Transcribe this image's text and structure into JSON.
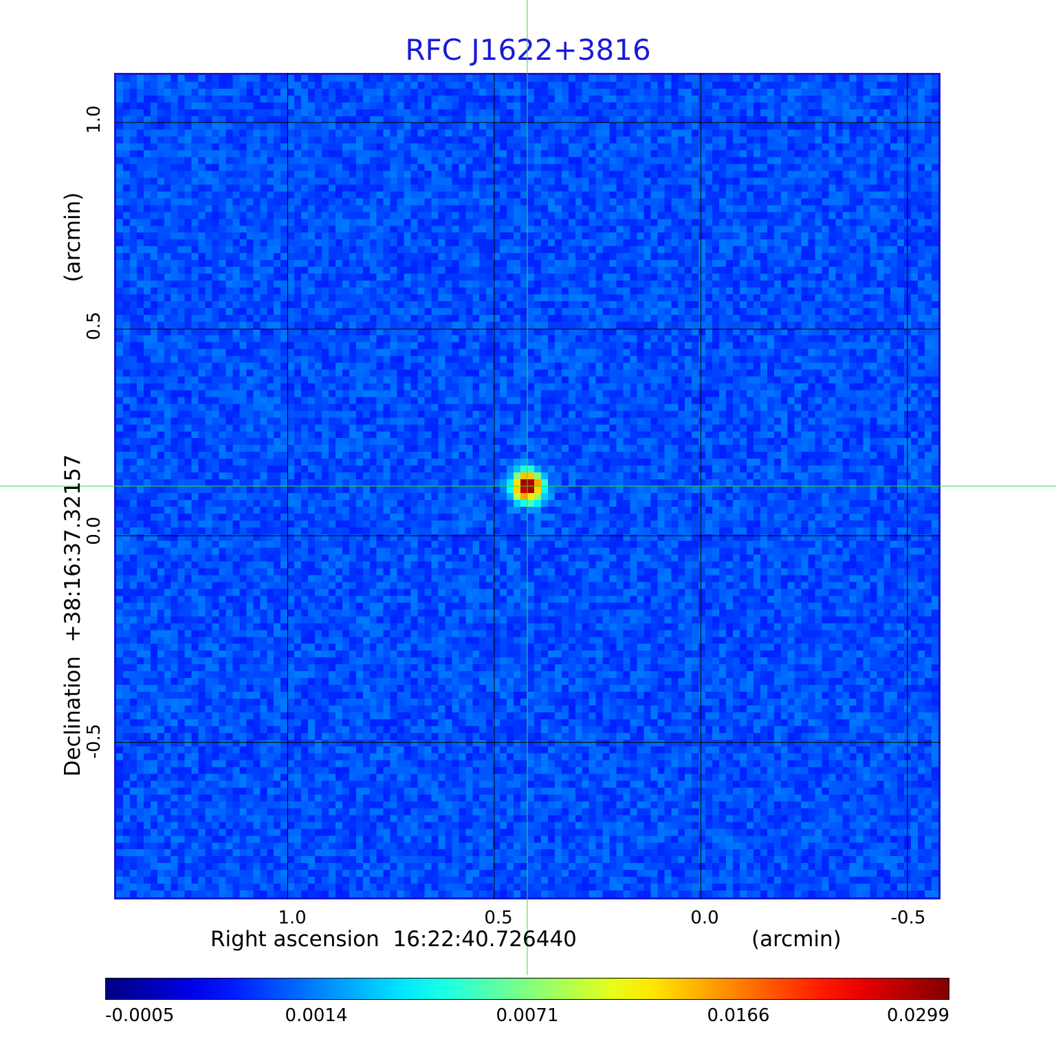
{
  "chart_data": {
    "type": "heatmap",
    "title": "RFC J1622+3816",
    "xlabel": "Right ascension  16:22:40.726440",
    "xunit": "(arcmin)",
    "ylabel": "Declination  +38:16:37.32157",
    "yunit": "(arcmin)",
    "x_ticks": [
      "1.0",
      "0.5",
      "0.0",
      "-0.5"
    ],
    "y_ticks": [
      "1.0",
      "0.5",
      "0.0",
      "-0.5"
    ],
    "x_tick_values": [
      1.0,
      0.5,
      0.0,
      -0.5
    ],
    "y_tick_values": [
      1.0,
      0.5,
      0.0,
      -0.5
    ],
    "xlim": [
      1.42,
      -0.58
    ],
    "ylim": [
      -0.88,
      1.12
    ],
    "grid": true,
    "crosshair": {
      "x": 0.42,
      "y": 0.12
    },
    "peak": {
      "x": 0.42,
      "y": 0.12,
      "value": 0.0299
    },
    "colorbar": {
      "ticks": [
        "-0.0005",
        "0.0014",
        "0.0071",
        "0.0166",
        "0.0299"
      ],
      "tick_values": [
        -0.0005,
        0.0014,
        0.0071,
        0.0166,
        0.0299
      ],
      "colormap": "jet"
    }
  },
  "colors": {
    "title": "#1a1ad8",
    "frame": "#1616d0",
    "grid": "#000000",
    "crosshair": "#33dd33"
  }
}
